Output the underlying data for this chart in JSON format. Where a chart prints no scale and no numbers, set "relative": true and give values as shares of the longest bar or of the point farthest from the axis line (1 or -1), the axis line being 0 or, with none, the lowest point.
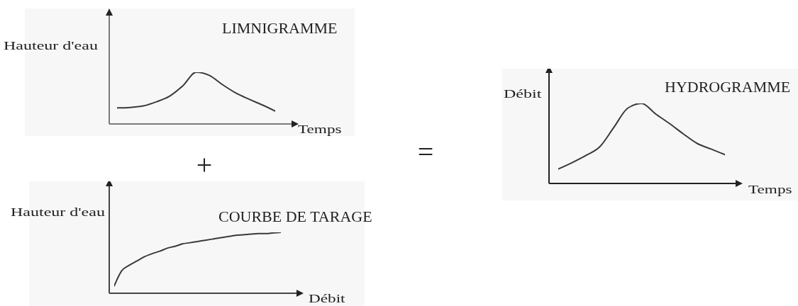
{
  "chart_data": [
    {
      "type": "line",
      "title": "LIMNIGRAMME",
      "xlabel": "Temps",
      "ylabel": "Hauteur d'eau",
      "relative": true,
      "categories": [
        null,
        null,
        null,
        null,
        null,
        null,
        null,
        null,
        null,
        null,
        null,
        null,
        null
      ],
      "values": [
        0.31,
        0.32,
        0.35,
        0.43,
        0.54,
        0.74,
        1,
        0.94,
        0.76,
        0.6,
        0.48,
        0.37,
        0.25
      ],
      "color": "#3a3a3a"
    },
    {
      "type": "line",
      "title": "COURBE DE TARAGE",
      "xlabel": "Débit",
      "ylabel": "Hauteur d'eau",
      "relative": true,
      "categories": [
        null,
        null,
        null,
        null,
        null,
        null,
        null,
        null,
        null,
        null,
        null,
        null,
        null,
        null,
        null,
        null,
        null,
        null,
        null,
        null,
        null,
        null,
        null
      ],
      "values": [
        0.12,
        0.37,
        0.46,
        0.53,
        0.6,
        0.65,
        0.69,
        0.74,
        0.77,
        0.81,
        0.83,
        0.85,
        0.87,
        0.89,
        0.91,
        0.93,
        0.95,
        0.96,
        0.97,
        0.98,
        0.98,
        0.99,
        1
      ],
      "color": "#3a3a3a",
      "annotations": [
        "+"
      ]
    },
    {
      "type": "line",
      "title": "HYDROGRAMME",
      "xlabel": "Temps",
      "ylabel": "Débit",
      "relative": true,
      "categories": [
        null,
        null,
        null,
        null,
        null,
        null,
        null,
        null,
        null,
        null,
        null,
        null,
        null
      ],
      "values": [
        0.18,
        0.26,
        0.35,
        0.46,
        0.7,
        0.94,
        1,
        0.87,
        0.75,
        0.62,
        0.5,
        0.43,
        0.36
      ],
      "color": "#3a3a3a",
      "annotations": [
        "="
      ]
    }
  ]
}
